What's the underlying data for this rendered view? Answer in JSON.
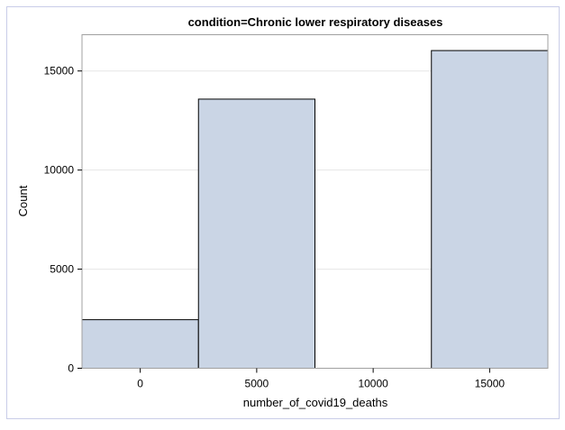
{
  "chart_data": {
    "type": "bar",
    "title": "condition=Chronic lower respiratory diseases",
    "xlabel": "number_of_covid19_deaths",
    "ylabel": "Count",
    "bin_width": 5000,
    "bins": [
      {
        "center": 0,
        "count": 2450
      },
      {
        "center": 5000,
        "count": 13580
      },
      {
        "center": 10000,
        "count": 0
      },
      {
        "center": 15000,
        "count": 16030
      }
    ],
    "x_ticks": [
      "0",
      "5000",
      "10000",
      "15000"
    ],
    "y_ticks": [
      "0",
      "5000",
      "10000",
      "15000"
    ],
    "xlim": [
      -2500,
      17500
    ],
    "ylim": [
      0,
      16830
    ],
    "grid": true,
    "colors": {
      "bar_fill": "#cad5e5",
      "bar_stroke": "#000000",
      "grid": "#e6e6e6",
      "frame": "#c9cde8"
    }
  }
}
